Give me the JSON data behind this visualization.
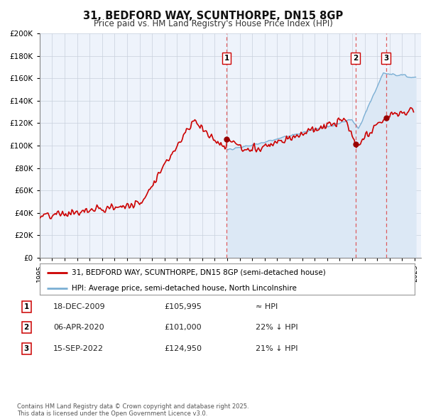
{
  "title": "31, BEDFORD WAY, SCUNTHORPE, DN15 8GP",
  "subtitle": "Price paid vs. HM Land Registry's House Price Index (HPI)",
  "legend_line1": "31, BEDFORD WAY, SCUNTHORPE, DN15 8GP (semi-detached house)",
  "legend_line2": "HPI: Average price, semi-detached house, North Lincolnshire",
  "footer": "Contains HM Land Registry data © Crown copyright and database right 2025.\nThis data is licensed under the Open Government Licence v3.0.",
  "price_color": "#cc0000",
  "hpi_fill_color": "#dce8f5",
  "hpi_line_color": "#7bafd4",
  "marker_color": "#990000",
  "vline_color": "#dd4444",
  "bg_color": "#eef3fb",
  "grid_color": "#c8d0dc",
  "ylim": [
    0,
    200000
  ],
  "ytick_step": 20000,
  "x_min": 1995,
  "x_max": 2025.5,
  "transactions": [
    {
      "date": "2009-12-18",
      "price": 105995,
      "label": "1"
    },
    {
      "date": "2020-04-06",
      "price": 101000,
      "label": "2"
    },
    {
      "date": "2022-09-15",
      "price": 124950,
      "label": "3"
    }
  ],
  "transaction_notes": [
    {
      "label": "1",
      "date": "18-DEC-2009",
      "price": "£105,995",
      "note": "≈ HPI"
    },
    {
      "label": "2",
      "date": "06-APR-2020",
      "price": "£101,000",
      "note": "22% ↓ HPI"
    },
    {
      "label": "3",
      "date": "15-SEP-2022",
      "price": "£124,950",
      "note": "21% ↓ HPI"
    }
  ]
}
